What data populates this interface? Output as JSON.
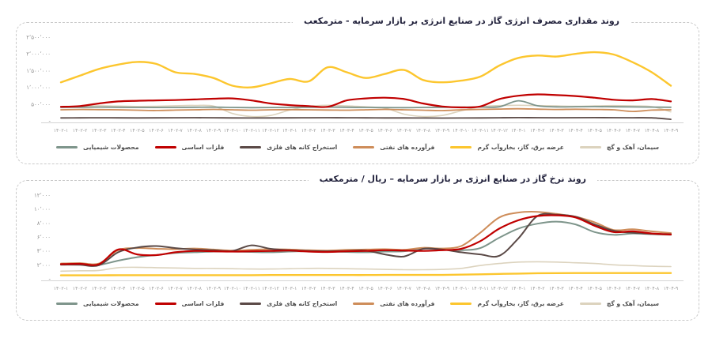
{
  "page": {
    "background": "#ffffff",
    "axis_text_color": "#8f8f8f",
    "axis_line_color": "#d4d4d4",
    "title_color": "#23233d"
  },
  "chart_data": [
    {
      "type": "line",
      "title": "روند مقداری مصرف انرژی گاز در صنایع انرژی بر بازار سرمایه - مترمکعب",
      "xlabel": "",
      "ylabel": "",
      "ylim": [
        0,
        2500000
      ],
      "grid": false,
      "legend_position": "bottom",
      "y_tick_values": [
        0,
        500000,
        1000000,
        1500000,
        2000000,
        2500000
      ],
      "y_tick_labels": [
        "-",
        "۵۰۰٬۰۰۰",
        "۱٬۰۰۰٬۰۰۰",
        "۱٬۵۰۰٬۰۰۰",
        "۲٬۰۰۰٬۰۰۰",
        "۲٬۵۰۰٬۰۰۰"
      ],
      "categories": [
        "۱۴۰۲-۱",
        "۱۴۰۲-۲",
        "۱۴۰۲-۳",
        "۱۴۰۲-۴",
        "۱۴۰۲-۵",
        "۱۴۰۲-۶",
        "۱۴۰۲-۷",
        "۱۴۰۲-۸",
        "۱۴۰۲-۹",
        "۱۴۰۲-۱۰",
        "۱۴۰۲-۱۱",
        "۱۴۰۲-۱۲",
        "۱۴۰۳-۱",
        "۱۴۰۳-۲",
        "۱۴۰۳-۳",
        "۱۴۰۳-۴",
        "۱۴۰۳-۵",
        "۱۴۰۳-۶",
        "۱۴۰۳-۷",
        "۱۴۰۳-۸",
        "۱۴۰۳-۹",
        "۱۴۰۳-۱۰",
        "۱۴۰۳-۱۱",
        "۱۴۰۳-۱۲",
        "۱۴۰۴-۱",
        "۱۴۰۴-۲",
        "۱۴۰۴-۳",
        "۱۴۰۴-۴",
        "۱۴۰۴-۵",
        "۱۴۰۴-۶",
        "۱۴۰۴-۷",
        "۱۴۰۴-۸",
        "۱۴۰۴-۹"
      ],
      "series": [
        {
          "name": "سیمان، آهک و گچ",
          "color": "#dcd3be",
          "weight": 1.6,
          "values": [
            430000,
            440000,
            450000,
            440000,
            430000,
            435000,
            450000,
            460000,
            440000,
            220000,
            130000,
            160000,
            320000,
            430000,
            465000,
            445000,
            420000,
            380000,
            200000,
            130000,
            160000,
            300000,
            420000,
            455000,
            465000,
            455000,
            445000,
            435000,
            445000,
            455000,
            445000,
            425000,
            270000
          ]
        },
        {
          "name": "عرضه برق، گاز، بخاروآب گرم",
          "color": "#fcc62e",
          "weight": 2.4,
          "values": [
            1150000,
            1350000,
            1550000,
            1680000,
            1760000,
            1700000,
            1450000,
            1400000,
            1280000,
            1050000,
            1000000,
            1120000,
            1250000,
            1180000,
            1600000,
            1450000,
            1280000,
            1400000,
            1520000,
            1220000,
            1150000,
            1200000,
            1320000,
            1650000,
            1880000,
            1950000,
            1920000,
            2000000,
            2050000,
            1980000,
            1750000,
            1450000,
            1050000
          ]
        },
        {
          "name": "فرآورده های نفتی",
          "color": "#ce8d5a",
          "weight": 1.8,
          "values": [
            330000,
            340000,
            335000,
            330000,
            318000,
            308000,
            320000,
            330000,
            342000,
            330000,
            318000,
            330000,
            335000,
            330000,
            324000,
            318000,
            330000,
            342000,
            330000,
            318000,
            306000,
            330000,
            342000,
            352000,
            362000,
            350000,
            340000,
            346000,
            340000,
            330000,
            280000,
            320000,
            330000
          ]
        },
        {
          "name": "استخراج کانه های فلزی",
          "color": "#5b4a47",
          "weight": 1.8,
          "values": [
            88000,
            90000,
            92000,
            90000,
            88000,
            90000,
            92000,
            94000,
            92000,
            87000,
            84000,
            87000,
            90000,
            92000,
            94000,
            92000,
            90000,
            88000,
            87000,
            84000,
            82000,
            85000,
            88000,
            92000,
            97000,
            94000,
            92000,
            94000,
            97000,
            95000,
            92000,
            90000,
            45000
          ]
        },
        {
          "name": "فلزات اساسی",
          "color": "#c00000",
          "weight": 2.2,
          "values": [
            420000,
            440000,
            520000,
            580000,
            600000,
            610000,
            620000,
            640000,
            660000,
            670000,
            610000,
            520000,
            470000,
            440000,
            420000,
            610000,
            670000,
            690000,
            650000,
            520000,
            430000,
            400000,
            430000,
            650000,
            750000,
            790000,
            770000,
            740000,
            690000,
            630000,
            610000,
            650000,
            580000
          ]
        },
        {
          "name": "محصولات شیمیایی",
          "color": "#7e958b",
          "weight": 1.8,
          "values": [
            400000,
            405000,
            410000,
            405000,
            400000,
            398000,
            402000,
            405000,
            408000,
            400000,
            395000,
            398000,
            402000,
            406000,
            410000,
            405000,
            400000,
            397000,
            394000,
            400000,
            405000,
            408000,
            412000,
            420000,
            600000,
            450000,
            418000,
            422000,
            426000,
            420000,
            415000,
            410000,
            405000
          ]
        }
      ]
    },
    {
      "type": "line",
      "title": "روند نرخ گاز در صنایع انرژی بر بازار سرمایه – ریال / مترمکعب",
      "xlabel": "",
      "ylabel": "",
      "ylim": [
        0,
        12000
      ],
      "grid": false,
      "legend_position": "bottom",
      "y_tick_values": [
        0,
        2000,
        4000,
        6000,
        8000,
        10000,
        12000
      ],
      "y_tick_labels": [
        "-",
        "۲٬۰۰۰",
        "۴٬۰۰۰",
        "۶٬۰۰۰",
        "۸٬۰۰۰",
        "۱۰٬۰۰۰",
        "۱۲٬۰۰۰"
      ],
      "categories": [
        "۱۴۰۲-۱",
        "۱۴۰۲-۲",
        "۱۴۰۲-۳",
        "۱۴۰۲-۴",
        "۱۴۰۲-۵",
        "۱۴۰۲-۶",
        "۱۴۰۲-۷",
        "۱۴۰۲-۸",
        "۱۴۰۲-۹",
        "۱۴۰۲-۱۰",
        "۱۴۰۲-۱۱",
        "۱۴۰۲-۱۲",
        "۱۴۰۳-۱",
        "۱۴۰۳-۲",
        "۱۴۰۳-۳",
        "۱۴۰۳-۴",
        "۱۴۰۳-۵",
        "۱۴۰۳-۶",
        "۱۴۰۳-۷",
        "۱۴۰۳-۸",
        "۱۴۰۳-۹",
        "۱۴۰۳-۱۰",
        "۱۴۰۳-۱۱",
        "۱۴۰۳-۱۲",
        "۱۴۰۴-۱",
        "۱۴۰۴-۲",
        "۱۴۰۴-۳",
        "۱۴۰۴-۴",
        "۱۴۰۴-۵",
        "۱۴۰۴-۶",
        "۱۴۰۴-۷",
        "۱۴۰۴-۸",
        "۱۴۰۴-۹"
      ],
      "series": [
        {
          "name": "سیمان، آهک و گچ",
          "color": "#dcd3be",
          "weight": 1.6,
          "values": [
            1100,
            1150,
            1200,
            1600,
            1650,
            1600,
            1550,
            1500,
            1500,
            1450,
            1400,
            1400,
            1450,
            1500,
            1500,
            1450,
            1400,
            1350,
            1300,
            1300,
            1350,
            1500,
            1900,
            2200,
            2400,
            2450,
            2400,
            2300,
            2200,
            2000,
            1900,
            1800,
            1750
          ]
        },
        {
          "name": "عرضه برق، گاز، بخاروآب گرم",
          "color": "#fcc62e",
          "weight": 2.4,
          "values": [
            500,
            500,
            500,
            520,
            520,
            520,
            520,
            520,
            520,
            520,
            520,
            540,
            540,
            540,
            540,
            540,
            540,
            560,
            560,
            560,
            560,
            600,
            650,
            700,
            750,
            800,
            820,
            830,
            830,
            830,
            830,
            830,
            830
          ]
        },
        {
          "name": "فرآورده های نفتی",
          "color": "#ce8d5a",
          "weight": 2.0,
          "values": [
            2200,
            2250,
            2200,
            4100,
            4400,
            4300,
            4250,
            4350,
            4200,
            4050,
            4150,
            4250,
            4200,
            4100,
            4050,
            4150,
            4200,
            4250,
            4150,
            4450,
            4350,
            4700,
            6600,
            8800,
            9500,
            9600,
            9300,
            8900,
            8100,
            7000,
            7100,
            6800,
            6550
          ]
        },
        {
          "name": "استخراج کانه های فلزی",
          "color": "#5b4a47",
          "weight": 2.0,
          "values": [
            2050,
            2000,
            1950,
            3800,
            4500,
            4700,
            4400,
            4200,
            4100,
            4000,
            4800,
            4300,
            4100,
            4000,
            3950,
            4000,
            4050,
            3500,
            3200,
            4300,
            4200,
            3800,
            3500,
            3300,
            5800,
            9000,
            9200,
            8900,
            7800,
            6900,
            6600,
            6450,
            6400
          ]
        },
        {
          "name": "فلزات اساسی",
          "color": "#c00000",
          "weight": 2.2,
          "values": [
            2100,
            2150,
            2100,
            4200,
            3500,
            3400,
            3800,
            4000,
            3950,
            3900,
            3950,
            4000,
            4050,
            3900,
            3850,
            3950,
            4000,
            4100,
            4050,
            4000,
            4100,
            4300,
            5400,
            7200,
            8400,
            9000,
            9100,
            8800,
            7600,
            6700,
            6800,
            6500,
            6350
          ]
        },
        {
          "name": "محصولات شیمیایی",
          "color": "#7e958b",
          "weight": 2.0,
          "values": [
            2000,
            2050,
            2000,
            2600,
            3100,
            3400,
            3700,
            3800,
            3900,
            3900,
            3850,
            3800,
            3900,
            3950,
            3900,
            3850,
            3800,
            3900,
            3950,
            4300,
            4200,
            4100,
            4400,
            5900,
            7200,
            7900,
            8200,
            7800,
            6700,
            6300,
            6500,
            6400,
            6300
          ]
        }
      ]
    }
  ]
}
